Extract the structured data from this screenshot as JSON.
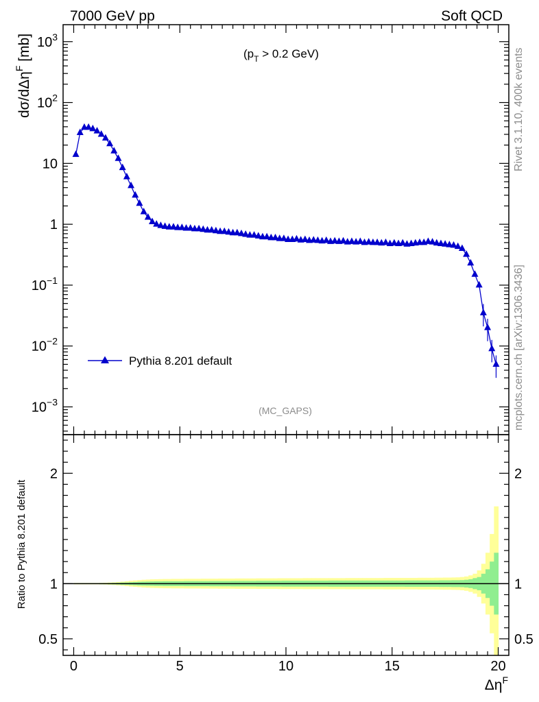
{
  "header": {
    "left_label": "7000 GeV pp",
    "right_label": "Soft QCD"
  },
  "side": {
    "rivet_label": "Rivet 3.1.10,  400k events",
    "source_label": "mcplots.cern.ch [arXiv:1306.3436]"
  },
  "colors": {
    "series": "#0000cc",
    "band_inner": "#90ee90",
    "band_outer": "#ffff99",
    "watermark": "#8c8c8c"
  },
  "chart_data": [
    {
      "type": "line",
      "panel": "main",
      "annotation_prefix": "(p",
      "annotation_sub": "T",
      "annotation_suffix": " > 0.2 GeV)",
      "watermark": "(MC_GAPS)",
      "ylabel_main": "dσ/dΔη",
      "ylabel_sup": "F",
      "ylabel_unit": " [mb]",
      "xlabel_main": "Δη",
      "xlabel_sup": "F",
      "yscale": "log",
      "xlim": [
        -0.5,
        20.5
      ],
      "ylim": [
        0.00035,
        1900
      ],
      "x_ticks": [
        "0",
        "5",
        "10",
        "15",
        "20"
      ],
      "y_ticks": [
        {
          "value": 1000,
          "base": "10",
          "exp": "3"
        },
        {
          "value": 100,
          "base": "10",
          "exp": "2"
        },
        {
          "value": 10,
          "base": "10",
          "exp": ""
        },
        {
          "value": 1,
          "base": "1",
          "exp": ""
        },
        {
          "value": 0.1,
          "base": "10",
          "exp": "−1"
        },
        {
          "value": 0.01,
          "base": "10",
          "exp": "−2"
        },
        {
          "value": 0.001,
          "base": "10",
          "exp": "−3"
        }
      ],
      "legend_placement": "lower-left",
      "series": [
        {
          "name": "Pythia 8.201 default",
          "marker": "triangle-up",
          "x": [
            0.1,
            0.3,
            0.5,
            0.7,
            0.9,
            1.1,
            1.3,
            1.5,
            1.7,
            1.9,
            2.1,
            2.3,
            2.5,
            2.7,
            2.9,
            3.1,
            3.3,
            3.5,
            3.7,
            3.9,
            4.1,
            4.3,
            4.5,
            4.7,
            4.9,
            5.1,
            5.3,
            5.5,
            5.7,
            5.9,
            6.1,
            6.3,
            6.5,
            6.7,
            6.9,
            7.1,
            7.3,
            7.5,
            7.7,
            7.9,
            8.1,
            8.3,
            8.5,
            8.7,
            8.9,
            9.1,
            9.3,
            9.5,
            9.7,
            9.9,
            10.1,
            10.3,
            10.5,
            10.7,
            10.9,
            11.1,
            11.3,
            11.5,
            11.7,
            11.9,
            12.1,
            12.3,
            12.5,
            12.7,
            12.9,
            13.1,
            13.3,
            13.5,
            13.7,
            13.9,
            14.1,
            14.3,
            14.5,
            14.7,
            14.9,
            15.1,
            15.3,
            15.5,
            15.7,
            15.9,
            16.1,
            16.3,
            16.5,
            16.7,
            16.9,
            17.1,
            17.3,
            17.5,
            17.7,
            17.9,
            18.1,
            18.3,
            18.5,
            18.7,
            18.9,
            19.1,
            19.3,
            19.5,
            19.7,
            19.9
          ],
          "y": [
            14,
            32,
            39,
            39,
            37,
            34,
            30,
            26,
            21,
            16,
            12,
            8.5,
            6,
            4.3,
            3.0,
            2.2,
            1.6,
            1.3,
            1.1,
            1.0,
            0.95,
            0.92,
            0.9,
            0.9,
            0.88,
            0.88,
            0.86,
            0.86,
            0.84,
            0.84,
            0.82,
            0.8,
            0.8,
            0.78,
            0.76,
            0.76,
            0.74,
            0.72,
            0.72,
            0.7,
            0.68,
            0.66,
            0.66,
            0.64,
            0.62,
            0.62,
            0.6,
            0.6,
            0.58,
            0.58,
            0.56,
            0.56,
            0.57,
            0.55,
            0.56,
            0.54,
            0.55,
            0.54,
            0.53,
            0.54,
            0.52,
            0.53,
            0.52,
            0.53,
            0.51,
            0.52,
            0.51,
            0.52,
            0.5,
            0.51,
            0.5,
            0.5,
            0.49,
            0.5,
            0.48,
            0.49,
            0.48,
            0.49,
            0.47,
            0.48,
            0.49,
            0.5,
            0.5,
            0.52,
            0.51,
            0.49,
            0.48,
            0.47,
            0.46,
            0.45,
            0.43,
            0.4,
            0.32,
            0.23,
            0.15,
            0.1,
            0.035,
            0.02,
            0.009,
            0.005
          ]
        }
      ]
    },
    {
      "type": "area",
      "panel": "ratio",
      "ylabel": "Ratio to Pythia 8.201 default",
      "ylim": [
        0.35,
        2.35
      ],
      "y_ticks": [
        "0.5",
        "1",
        "2"
      ],
      "x": [
        0.1,
        0.3,
        0.5,
        0.7,
        0.9,
        1.1,
        1.3,
        1.5,
        1.7,
        1.9,
        2.1,
        2.3,
        2.5,
        2.7,
        2.9,
        3.1,
        3.3,
        3.5,
        3.7,
        3.9,
        4.1,
        4.3,
        4.5,
        4.7,
        4.9,
        5.1,
        5.3,
        5.5,
        5.7,
        5.9,
        6.1,
        6.3,
        6.5,
        6.7,
        6.9,
        7.1,
        7.3,
        7.5,
        7.7,
        7.9,
        8.1,
        8.3,
        8.5,
        8.7,
        8.9,
        9.1,
        9.3,
        9.5,
        9.7,
        9.9,
        10.1,
        10.3,
        10.5,
        10.7,
        10.9,
        11.1,
        11.3,
        11.5,
        11.7,
        11.9,
        12.1,
        12.3,
        12.5,
        12.7,
        12.9,
        13.1,
        13.3,
        13.5,
        13.7,
        13.9,
        14.1,
        14.3,
        14.5,
        14.7,
        14.9,
        15.1,
        15.3,
        15.5,
        15.7,
        15.9,
        16.1,
        16.3,
        16.5,
        16.7,
        16.9,
        17.1,
        17.3,
        17.5,
        17.7,
        17.9,
        18.1,
        18.3,
        18.5,
        18.7,
        18.9,
        19.1,
        19.3,
        19.5,
        19.7,
        19.9
      ],
      "ratio": 1.0,
      "band_inner_halfwidth": [
        0.004,
        0.004,
        0.004,
        0.004,
        0.004,
        0.004,
        0.005,
        0.005,
        0.006,
        0.007,
        0.008,
        0.01,
        0.011,
        0.013,
        0.015,
        0.017,
        0.018,
        0.019,
        0.02,
        0.021,
        0.021,
        0.022,
        0.022,
        0.022,
        0.022,
        0.022,
        0.023,
        0.023,
        0.023,
        0.023,
        0.023,
        0.023,
        0.024,
        0.024,
        0.024,
        0.024,
        0.024,
        0.025,
        0.025,
        0.025,
        0.025,
        0.025,
        0.025,
        0.026,
        0.026,
        0.026,
        0.026,
        0.026,
        0.026,
        0.027,
        0.027,
        0.027,
        0.027,
        0.027,
        0.027,
        0.027,
        0.027,
        0.027,
        0.027,
        0.027,
        0.028,
        0.028,
        0.028,
        0.028,
        0.028,
        0.028,
        0.028,
        0.028,
        0.028,
        0.028,
        0.028,
        0.028,
        0.028,
        0.028,
        0.028,
        0.028,
        0.028,
        0.028,
        0.029,
        0.029,
        0.029,
        0.029,
        0.029,
        0.029,
        0.029,
        0.029,
        0.03,
        0.03,
        0.03,
        0.031,
        0.031,
        0.032,
        0.035,
        0.04,
        0.05,
        0.06,
        0.09,
        0.13,
        0.2,
        0.28
      ],
      "band_outer_halfwidth": [
        0.006,
        0.006,
        0.006,
        0.006,
        0.006,
        0.006,
        0.007,
        0.008,
        0.01,
        0.012,
        0.015,
        0.018,
        0.022,
        0.026,
        0.029,
        0.032,
        0.035,
        0.037,
        0.039,
        0.04,
        0.041,
        0.042,
        0.042,
        0.043,
        0.043,
        0.043,
        0.044,
        0.044,
        0.044,
        0.044,
        0.045,
        0.045,
        0.045,
        0.045,
        0.046,
        0.046,
        0.046,
        0.046,
        0.047,
        0.047,
        0.047,
        0.047,
        0.047,
        0.048,
        0.048,
        0.048,
        0.048,
        0.048,
        0.049,
        0.049,
        0.049,
        0.049,
        0.049,
        0.049,
        0.05,
        0.05,
        0.05,
        0.05,
        0.05,
        0.05,
        0.05,
        0.05,
        0.05,
        0.05,
        0.051,
        0.051,
        0.051,
        0.051,
        0.051,
        0.051,
        0.051,
        0.051,
        0.051,
        0.052,
        0.052,
        0.052,
        0.052,
        0.052,
        0.052,
        0.052,
        0.052,
        0.053,
        0.053,
        0.053,
        0.053,
        0.054,
        0.054,
        0.055,
        0.055,
        0.056,
        0.057,
        0.06,
        0.065,
        0.075,
        0.09,
        0.12,
        0.18,
        0.28,
        0.45,
        0.7
      ]
    }
  ]
}
